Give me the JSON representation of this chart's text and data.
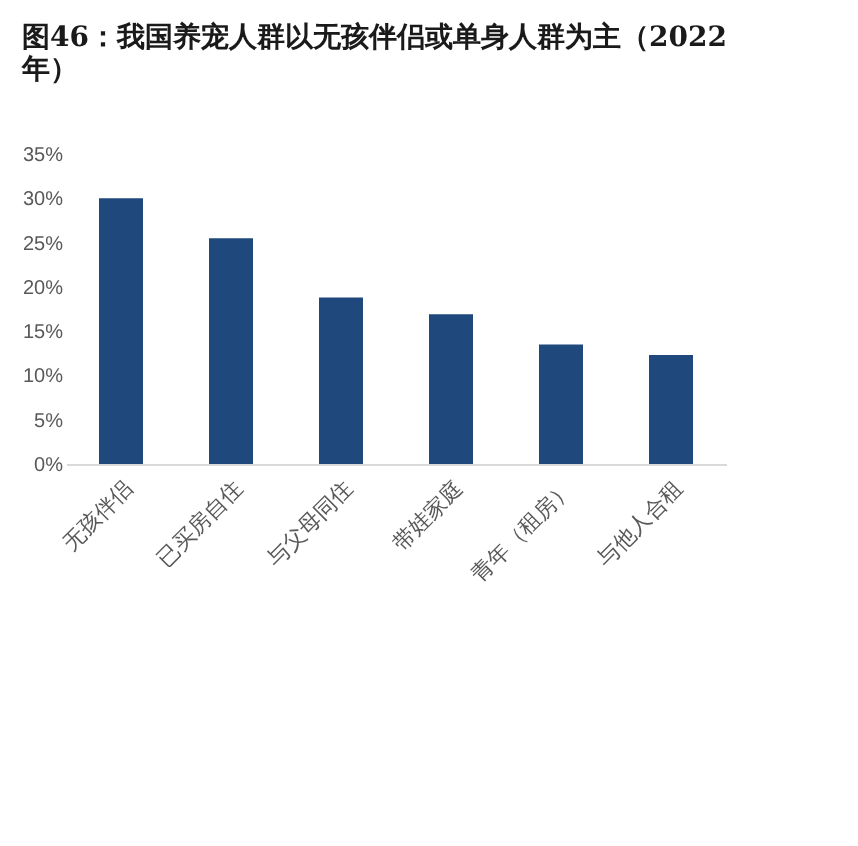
{
  "chart_data": {
    "type": "bar",
    "title": "图46：我国养宠人群以无孩伴侣或单身人群为主（2022年）",
    "categories": [
      "无孩伴侣",
      "已买房自住",
      "与父母同住",
      "带娃家庭",
      "青年（租房）",
      "与他人合租"
    ],
    "values": [
      30.0,
      25.5,
      18.8,
      16.9,
      13.5,
      12.3
    ],
    "color": "#1f497d",
    "ylim": [
      0,
      35
    ],
    "yticks": [
      {
        "value": 0,
        "label": "0%"
      },
      {
        "value": 5,
        "label": "5%"
      },
      {
        "value": 10,
        "label": "10%"
      },
      {
        "value": 15,
        "label": "15%"
      },
      {
        "value": 20,
        "label": "20%"
      },
      {
        "value": 25,
        "label": "25%"
      },
      {
        "value": 30,
        "label": "30%"
      },
      {
        "value": 35,
        "label": "35%"
      }
    ],
    "grid": false
  }
}
